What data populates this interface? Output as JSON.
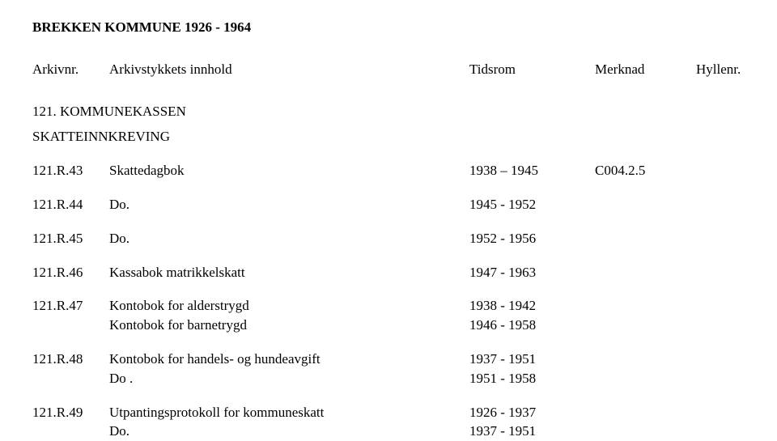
{
  "title": "BREKKEN KOMMUNE 1926 - 1964",
  "header": {
    "arkivnr": "Arkivnr.",
    "innhold": "Arkivstykkets innhold",
    "tidsrom": "Tidsrom",
    "merknad": "Merknad",
    "hyllenr": "Hyllenr."
  },
  "section_number": "121. KOMMUNEKASSEN",
  "subsection": "SKATTEINNKREVING",
  "rows": [
    {
      "arkivnr": "121.R.43",
      "innhold": [
        "Skattedagbok"
      ],
      "tidsrom": [
        "1938 – 1945"
      ],
      "merknad": "C004.2.5"
    },
    {
      "arkivnr": "121.R.44",
      "innhold": [
        "Do."
      ],
      "tidsrom": [
        "1945 - 1952"
      ],
      "merknad": ""
    },
    {
      "arkivnr": "121.R.45",
      "innhold": [
        "Do."
      ],
      "tidsrom": [
        "1952 - 1956"
      ],
      "merknad": ""
    },
    {
      "arkivnr": "121.R.46",
      "innhold": [
        "Kassabok matrikkelskatt"
      ],
      "tidsrom": [
        "1947 - 1963"
      ],
      "merknad": ""
    },
    {
      "arkivnr": "121.R.47",
      "innhold": [
        "Kontobok for alderstrygd",
        "Kontobok for barnetrygd"
      ],
      "tidsrom": [
        "1938 - 1942",
        "1946 - 1958"
      ],
      "merknad": ""
    },
    {
      "arkivnr": "121.R.48",
      "innhold": [
        "Kontobok for handels- og hundeavgift",
        "Do ."
      ],
      "tidsrom": [
        "1937 - 1951",
        "1951 - 1958"
      ],
      "merknad": ""
    },
    {
      "arkivnr": "121.R.49",
      "innhold": [
        "Utpantingsprotokoll for kommuneskatt",
        "Do."
      ],
      "tidsrom": [
        "1926 - 1937",
        "1937 - 1951"
      ],
      "merknad": ""
    }
  ]
}
